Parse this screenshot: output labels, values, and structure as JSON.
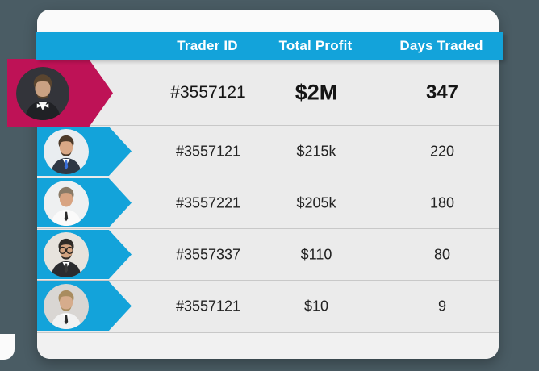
{
  "page": {
    "background_color": "#4a5c64"
  },
  "card": {
    "background_color": "#ebebeb",
    "top_strip_color": "#fafafa",
    "footer_color": "#f1f1f1"
  },
  "header": {
    "background_color": "#13a3da",
    "text_color": "#ffffff",
    "columns": [
      {
        "label": "Trader ID"
      },
      {
        "label": "Total Profit"
      },
      {
        "label": "Days Traded"
      }
    ]
  },
  "row_chevron_color": "#13a3da",
  "featured_ribbon_color": "#be1256",
  "rows": [
    {
      "featured": true,
      "trader_id": "#3557121",
      "total_profit": "$2M",
      "days_traded": "347",
      "avatar": {
        "bg": "#33343a",
        "skin": "#c9a183",
        "hair": "#5a452f",
        "suit": "#202125",
        "shirt": "#f5f5f5",
        "tie": "#ffffff",
        "beard": true,
        "bowtie": true,
        "glasses": false
      }
    },
    {
      "featured": false,
      "trader_id": "#3557121",
      "total_profit": "$215k",
      "days_traded": "220",
      "avatar": {
        "bg": "#e9edf0",
        "skin": "#d9a886",
        "hair": "#4c3a2a",
        "suit": "#2e3744",
        "shirt": "#ffffff",
        "tie": "#3a6fd8",
        "beard": true,
        "bowtie": false,
        "glasses": false
      }
    },
    {
      "featured": false,
      "trader_id": "#3557221",
      "total_profit": "$205k",
      "days_traded": "180",
      "avatar": {
        "bg": "#eef0f1",
        "skin": "#d8a482",
        "hair": "#8a7a66",
        "suit": "#fafafa",
        "shirt": "#ffffff",
        "tie": "#2b2b2b",
        "beard": false,
        "bowtie": false,
        "glasses": false
      }
    },
    {
      "featured": false,
      "trader_id": "#3557337",
      "total_profit": "$110",
      "days_traded": "80",
      "avatar": {
        "bg": "#e7e3dd",
        "skin": "#d2a27f",
        "hair": "#2f2a26",
        "suit": "#2b2b2e",
        "shirt": "#ffffff",
        "tie": "#3a3a3a",
        "beard": true,
        "bowtie": false,
        "glasses": true
      }
    },
    {
      "featured": false,
      "trader_id": "#3557121",
      "total_profit": "$10",
      "days_traded": "9",
      "avatar": {
        "bg": "#d9d6d3",
        "skin": "#d6ac8c",
        "hair": "#a98c5f",
        "suit": "#f2f2f2",
        "shirt": "#ffffff",
        "tie": "#2b2b2b",
        "beard": true,
        "bowtie": false,
        "glasses": false
      }
    }
  ]
}
